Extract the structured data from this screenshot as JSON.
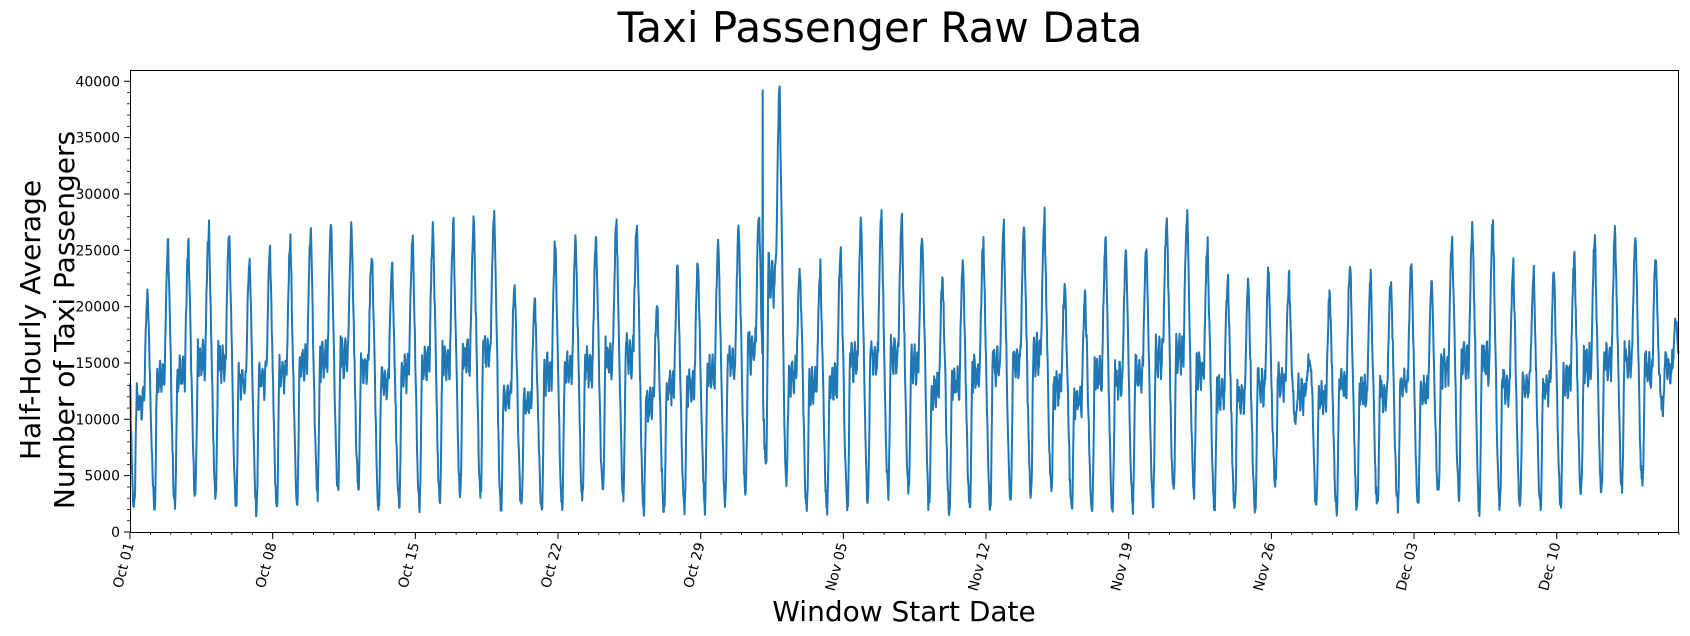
{
  "chart_data": {
    "type": "line",
    "title": "Taxi Passenger Raw Data",
    "xlabel": "Window Start Date",
    "ylabel_lines": [
      "Half-Hourly Average",
      "Number of Taxi Passengers"
    ],
    "x_start": "2014-10-01",
    "x_end": "2014-12-16",
    "x_step": "30 minutes",
    "ylim": [
      0,
      41000
    ],
    "yticks": [
      0,
      5000,
      10000,
      15000,
      20000,
      25000,
      30000,
      35000,
      40000
    ],
    "xtick_labels": [
      {
        "date": "2014-10-01",
        "label": "Oct 01"
      },
      {
        "date": "2014-10-08",
        "label": "Oct 08"
      },
      {
        "date": "2014-10-15",
        "label": "Oct 15"
      },
      {
        "date": "2014-10-22",
        "label": "Oct 22"
      },
      {
        "date": "2014-10-29",
        "label": "Oct 29"
      },
      {
        "date": "2014-11-05",
        "label": "Nov 05"
      },
      {
        "date": "2014-11-12",
        "label": "Nov 12"
      },
      {
        "date": "2014-11-19",
        "label": "Nov 19"
      },
      {
        "date": "2014-11-26",
        "label": "Nov 26"
      },
      {
        "date": "2014-12-03",
        "label": "Dec 03"
      },
      {
        "date": "2014-12-10",
        "label": "Dec 10"
      }
    ],
    "grid": false,
    "color": "#1f77b4",
    "series": [
      {
        "x": [
          "2014-10-01",
          "2014-10-02",
          "2014-10-03",
          "2014-10-04",
          "2014-10-05",
          "2014-10-06",
          "2014-10-07",
          "2014-10-08",
          "2014-10-09",
          "2014-10-10",
          "2014-10-11",
          "2014-10-12",
          "2014-10-13",
          "2014-10-14",
          "2014-10-15",
          "2014-10-16",
          "2014-10-17",
          "2014-10-18",
          "2014-10-19",
          "2014-10-20",
          "2014-10-21",
          "2014-10-22",
          "2014-10-23",
          "2014-10-24",
          "2014-10-25",
          "2014-10-26",
          "2014-10-27",
          "2014-10-28",
          "2014-10-29",
          "2014-10-30",
          "2014-10-31",
          "2014-11-01",
          "2014-11-02",
          "2014-11-03",
          "2014-11-04",
          "2014-11-05",
          "2014-11-06",
          "2014-11-07",
          "2014-11-08",
          "2014-11-09",
          "2014-11-10",
          "2014-11-11",
          "2014-11-12",
          "2014-11-13",
          "2014-11-14",
          "2014-11-15",
          "2014-11-16",
          "2014-11-17",
          "2014-11-18",
          "2014-11-19",
          "2014-11-20",
          "2014-11-21",
          "2014-11-22",
          "2014-11-23",
          "2014-11-24",
          "2014-11-25",
          "2014-11-26",
          "2014-11-27",
          "2014-11-28",
          "2014-11-29",
          "2014-11-30",
          "2014-12-01",
          "2014-12-02",
          "2014-12-03",
          "2014-12-04",
          "2014-12-05",
          "2014-12-06",
          "2014-12-07",
          "2014-12-08",
          "2014-12-09",
          "2014-12-10",
          "2014-12-11",
          "2014-12-12",
          "2014-12-13",
          "2014-12-14",
          "2014-12-15"
        ],
        "daily_peak": [
          21000,
          25500,
          25500,
          27000,
          26500,
          24500,
          24800,
          25800,
          26800,
          27000,
          27100,
          24800,
          24000,
          26200,
          27000,
          27100,
          27500,
          28500,
          22000,
          20500,
          25900,
          26100,
          25900,
          27400,
          27500,
          20500,
          23500,
          23800,
          25500,
          27100,
          28400,
          39200,
          23200,
          23500,
          24800,
          27500,
          28000,
          27600,
          26400,
          23000,
          23800,
          25900,
          27100,
          27300,
          28100,
          22000,
          21000,
          25800,
          24800,
          25300,
          28000,
          28400,
          25400,
          22500,
          22000,
          23600,
          22400,
          15500,
          21300,
          24100,
          22500,
          22400,
          23700,
          22000,
          26000,
          27000,
          27600,
          23800,
          23200,
          23000,
          24400,
          26000,
          26700,
          26500,
          24800,
          19000
        ],
        "daily_trough": [
          2000,
          2300,
          2300,
          3300,
          3300,
          2000,
          2000,
          2200,
          2800,
          3500,
          3500,
          4000,
          2000,
          2000,
          2200,
          2800,
          3600,
          3600,
          2000,
          2000,
          2000,
          2300,
          3000,
          3200,
          3500,
          2000,
          1900,
          2000,
          2300,
          2600,
          3500,
          6000,
          4500,
          2000,
          2000,
          2300,
          2700,
          3600,
          3500,
          2000,
          1900,
          2000,
          2200,
          2600,
          3300,
          3600,
          1900,
          1900,
          2000,
          2300,
          2800,
          3400,
          3400,
          2000,
          2000,
          2000,
          4200,
          10000,
          2100,
          2000,
          2000,
          2000,
          2200,
          2500,
          3400,
          3500,
          1900,
          2000,
          2000,
          2200,
          2600,
          3500,
          3500,
          3800,
          3800,
          11000
        ]
      }
    ]
  }
}
